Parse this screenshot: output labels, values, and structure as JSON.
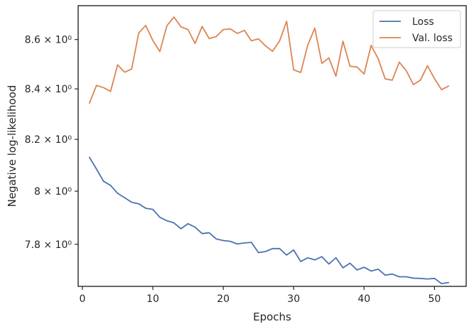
{
  "chart_data": {
    "type": "line",
    "xlabel": "Epochs",
    "ylabel": "Negative log-likelihood",
    "y_scale": "log",
    "xlim": [
      -0.6,
      54.5
    ],
    "ylim": [
      7.645,
      8.74
    ],
    "x_ticks": [
      0,
      10,
      20,
      30,
      40,
      50
    ],
    "x_tick_labels": [
      "0",
      "10",
      "20",
      "30",
      "40",
      "50"
    ],
    "y_ticks": [
      7.8,
      8.0,
      8.2,
      8.4,
      8.6
    ],
    "y_tick_labels": [
      "7.8 × 10⁰",
      "8 × 10⁰",
      "8.2 × 10⁰",
      "8.4 × 10⁰",
      "8.6 × 10⁰"
    ],
    "grid": false,
    "legend_position": "top-right",
    "x": [
      1,
      2,
      3,
      4,
      5,
      6,
      7,
      8,
      9,
      10,
      11,
      12,
      13,
      14,
      15,
      16,
      17,
      18,
      19,
      20,
      21,
      22,
      23,
      24,
      25,
      26,
      27,
      28,
      29,
      30,
      31,
      32,
      33,
      34,
      35,
      36,
      37,
      38,
      39,
      40,
      41,
      42,
      43,
      44,
      45,
      46,
      47,
      48,
      49,
      50,
      51,
      52
    ],
    "series": [
      {
        "name": "Loss",
        "color": "#4c72b0",
        "values": [
          8.13,
          8.085,
          8.038,
          8.022,
          7.992,
          7.975,
          7.958,
          7.952,
          7.935,
          7.931,
          7.901,
          7.888,
          7.88,
          7.858,
          7.877,
          7.864,
          7.84,
          7.843,
          7.82,
          7.814,
          7.811,
          7.801,
          7.805,
          7.807,
          7.769,
          7.773,
          7.784,
          7.784,
          7.76,
          7.779,
          7.736,
          7.75,
          7.742,
          7.754,
          7.727,
          7.75,
          7.713,
          7.73,
          7.705,
          7.715,
          7.701,
          7.708,
          7.686,
          7.69,
          7.68,
          7.68,
          7.675,
          7.674,
          7.672,
          7.674,
          7.655,
          7.659
        ]
      },
      {
        "name": "Val. loss",
        "color": "#dd8452",
        "values": [
          8.343,
          8.414,
          8.405,
          8.39,
          8.497,
          8.467,
          8.48,
          8.627,
          8.658,
          8.596,
          8.551,
          8.657,
          8.693,
          8.652,
          8.641,
          8.584,
          8.654,
          8.604,
          8.612,
          8.641,
          8.644,
          8.625,
          8.638,
          8.595,
          8.603,
          8.574,
          8.552,
          8.594,
          8.675,
          8.477,
          8.466,
          8.577,
          8.647,
          8.503,
          8.525,
          8.451,
          8.593,
          8.491,
          8.488,
          8.46,
          8.576,
          8.522,
          8.44,
          8.435,
          8.508,
          8.473,
          8.417,
          8.435,
          8.493,
          8.441,
          8.397,
          8.411
        ]
      }
    ]
  }
}
